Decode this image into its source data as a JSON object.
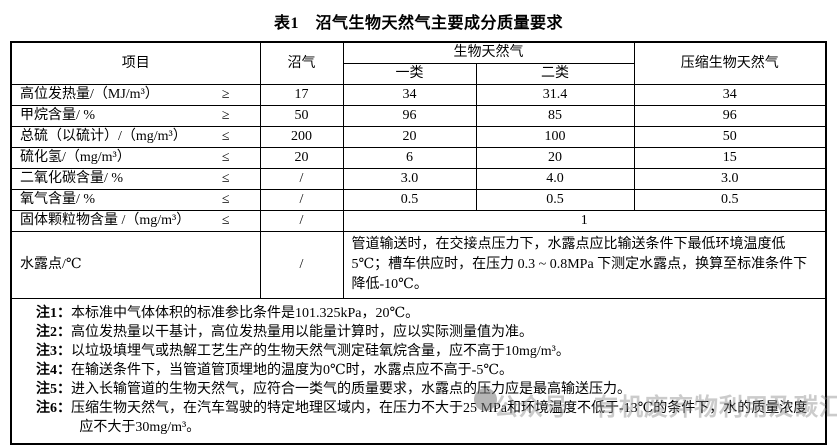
{
  "title": "表1　沼气生物天然气主要成分质量要求",
  "table": {
    "header": {
      "col_item": "项目",
      "col_biogas": "沼气",
      "col_bng_group": "生物天然气",
      "col_bng_1": "一类",
      "col_bng_2": "二类",
      "col_cbng": "压缩生物天然气"
    },
    "rows": [
      {
        "item": "高位发热量/（MJ/m³）",
        "op": "≥",
        "biogas": "17",
        "bng1": "34",
        "bng2": "31.4",
        "cbng": "34"
      },
      {
        "item": "甲烷含量/ %",
        "op": "≥",
        "biogas": "50",
        "bng1": "96",
        "bng2": "85",
        "cbng": "96"
      },
      {
        "item": "总硫（以硫计）/（mg/m³）",
        "op": "≤",
        "biogas": "200",
        "bng1": "20",
        "bng2": "100",
        "cbng": "50"
      },
      {
        "item": "硫化氢/（mg/m³）",
        "op": "≤",
        "biogas": "20",
        "bng1": "6",
        "bng2": "20",
        "cbng": "15"
      },
      {
        "item": "二氧化碳含量/ %",
        "op": "≤",
        "biogas": "/",
        "bng1": "3.0",
        "bng2": "4.0",
        "cbng": "3.0"
      },
      {
        "item": "氧气含量/ %",
        "op": "≤",
        "biogas": "/",
        "bng1": "0.5",
        "bng2": "0.5",
        "cbng": "0.5"
      },
      {
        "item": "固体颗粒物含量 /（mg/m³）",
        "op": "≤",
        "biogas": "/",
        "merged": "1"
      },
      {
        "item": "水露点/℃",
        "op": "",
        "biogas": "/",
        "merged": "管道输送时，在交接点压力下，水露点应比输送条件下最低环境温度低 5℃；槽车供应时，在压力 0.3 ~ 0.8MPa 下测定水露点，换算至标准条件下降低-10℃。"
      }
    ],
    "notes": [
      {
        "label": "注1：",
        "text": "本标准中气体体积的标准参比条件是101.325kPa，20℃。"
      },
      {
        "label": "注2：",
        "text": "高位发热量以干基计，高位发热量用以能量计算时，应以实际测量值为准。"
      },
      {
        "label": "注3：",
        "text": "以垃圾填埋气或热解工艺生产的生物天然气测定硅氧烷含量，应不高于10mg/m³。"
      },
      {
        "label": "注4：",
        "text": "在输送条件下，当管道管顶埋地的温度为0℃时，水露点应不高于-5℃。"
      },
      {
        "label": "注5：",
        "text": "进入长输管道的生物天然气，应符合一类气的质量要求，水露点的压力应是最高输送压力。"
      },
      {
        "label": "注6：",
        "text": "压缩生物天然气，在汽车驾驶的特定地理区域内，在压力不大于25 MPa和环境温度不低于-13℃的条件下，水的质量浓度应不大于30mg/m³。"
      }
    ]
  },
  "watermark": {
    "text": "公众号　有机废弃物利用及碳汇",
    "color": "#8c8c8c"
  }
}
